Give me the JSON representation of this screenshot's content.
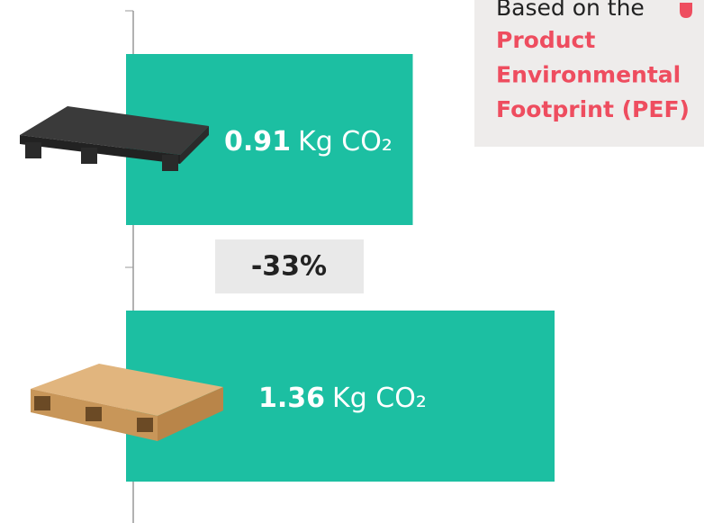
{
  "chart_data": {
    "type": "bar",
    "orientation": "horizontal",
    "values": [
      0.91,
      1.36
    ],
    "unit": "Kg CO₂",
    "color": "#1cbfa2",
    "annotation": "-33%",
    "note": {
      "intro": "Based on the",
      "highlight": [
        "Product",
        "Environmental",
        "Footprint (PEF)"
      ],
      "highlight_color": "#ee4d5f"
    }
  }
}
